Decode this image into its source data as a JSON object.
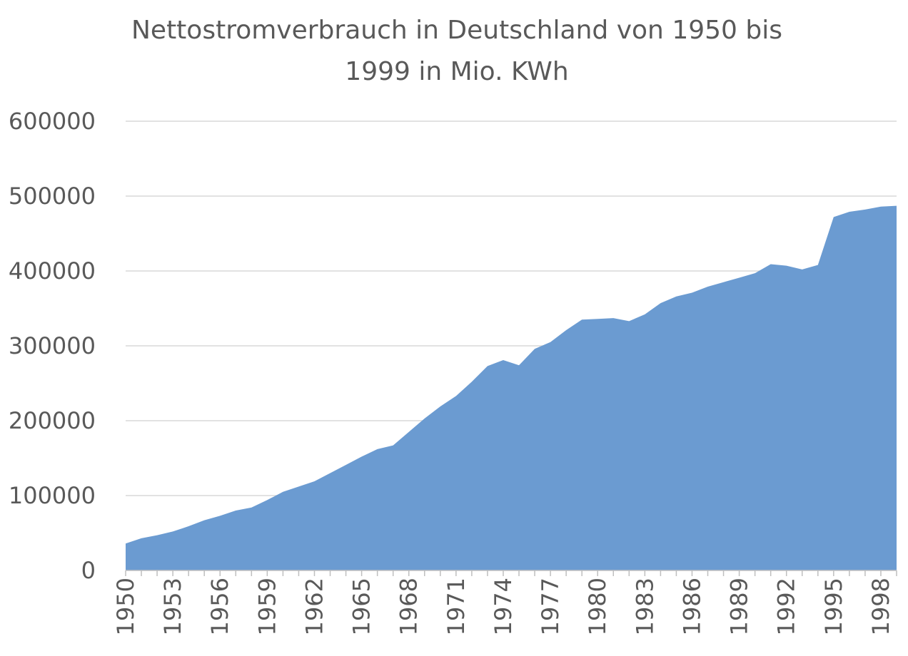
{
  "chart_data": {
    "type": "area",
    "title": "Nettostromverbrauch in Deutschland von 1950 bis 1999 in Mio. KWh",
    "title_lines": [
      "Nettostromverbrauch in Deutschland von 1950 bis",
      "1999 in Mio. KWh"
    ],
    "xlabel": "",
    "ylabel": "",
    "ylim": [
      0,
      600000
    ],
    "yticks": [
      "0",
      "100000",
      "200000",
      "300000",
      "400000",
      "500000",
      "600000"
    ],
    "xtick_labels": [
      "1950",
      "1953",
      "1956",
      "1959",
      "1962",
      "1965",
      "1968",
      "1971",
      "1974",
      "1977",
      "1980",
      "1983",
      "1986",
      "1989",
      "1992",
      "1995",
      "1998"
    ],
    "grid": true,
    "legend": "none",
    "color": "#6b9bd1",
    "x": [
      1950,
      1951,
      1952,
      1953,
      1954,
      1955,
      1956,
      1957,
      1958,
      1959,
      1960,
      1961,
      1962,
      1963,
      1964,
      1965,
      1966,
      1967,
      1968,
      1969,
      1970,
      1971,
      1972,
      1973,
      1974,
      1975,
      1976,
      1977,
      1978,
      1979,
      1980,
      1981,
      1982,
      1983,
      1984,
      1985,
      1986,
      1987,
      1988,
      1989,
      1990,
      1991,
      1992,
      1993,
      1994,
      1995,
      1996,
      1997,
      1998,
      1999
    ],
    "values": [
      36000,
      43000,
      47000,
      52000,
      59000,
      67000,
      73000,
      80000,
      84000,
      94000,
      105000,
      112000,
      119000,
      130000,
      141000,
      152000,
      162000,
      167000,
      185000,
      203000,
      219000,
      233000,
      252000,
      273000,
      281000,
      274000,
      296000,
      305000,
      321000,
      335000,
      336000,
      337000,
      333000,
      342000,
      357000,
      366000,
      371000,
      379000,
      385000,
      391000,
      397000,
      409000,
      407000,
      402000,
      408000,
      472000,
      479000,
      482000,
      486000,
      487000
    ]
  }
}
